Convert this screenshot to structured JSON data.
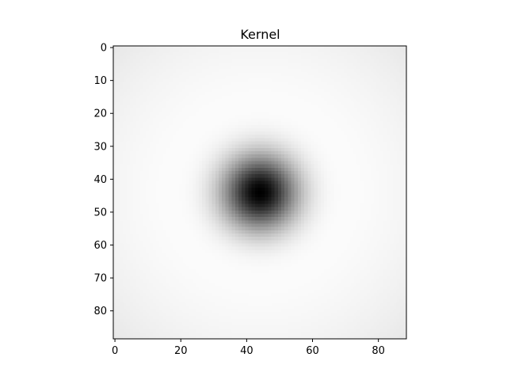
{
  "chart_data": {
    "type": "heatmap",
    "title": "Kernel",
    "xlabel": "",
    "ylabel": "",
    "colormap": "gray_r",
    "colors": {
      "low": "#ffffff",
      "high": "#000000",
      "frame": "#000000"
    },
    "grid": false,
    "legend": "none",
    "rows": 89,
    "cols": 89,
    "x_range": [
      0,
      88
    ],
    "y_range": [
      0,
      88
    ],
    "y_inverted": true,
    "center": [
      44,
      44
    ],
    "peak_value": 1.0,
    "x_ticks": [
      {
        "value": 0,
        "label": "0"
      },
      {
        "value": 20,
        "label": "20"
      },
      {
        "value": 40,
        "label": "40"
      },
      {
        "value": 60,
        "label": "60"
      },
      {
        "value": 80,
        "label": "80"
      }
    ],
    "y_ticks": [
      {
        "value": 0,
        "label": "0"
      },
      {
        "value": 10,
        "label": "10"
      },
      {
        "value": 20,
        "label": "20"
      },
      {
        "value": 30,
        "label": "30"
      },
      {
        "value": 40,
        "label": "40"
      },
      {
        "value": 50,
        "label": "50"
      },
      {
        "value": 60,
        "label": "60"
      },
      {
        "value": 70,
        "label": "70"
      },
      {
        "value": 80,
        "label": "80"
      }
    ]
  }
}
